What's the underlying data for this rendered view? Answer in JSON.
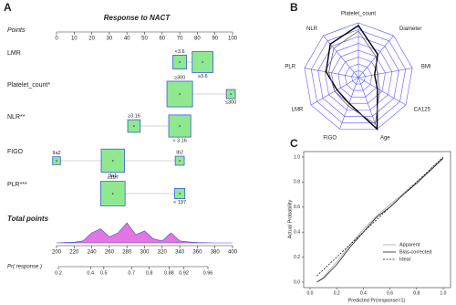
{
  "chart_data": [
    {
      "type": "nomogram",
      "panel": "A",
      "title": "Response to NACT",
      "points_label": "Points",
      "points_xlim": [
        0,
        100
      ],
      "points_ticks": [
        0,
        10,
        20,
        30,
        40,
        50,
        60,
        70,
        80,
        90,
        100
      ],
      "variables": [
        {
          "name": "LMR",
          "levels": [
            {
              "label": "<3.6",
              "points": 70,
              "proportion": 0.35
            },
            {
              "label": "≥3.6",
              "points": 83,
              "proportion": 0.65
            }
          ]
        },
        {
          "name": "Platelet_count*",
          "levels": [
            {
              "label": "≥300",
              "points": 70,
              "proportion": 0.85
            },
            {
              "label": "≤300",
              "points": 99,
              "proportion": 0.15
            }
          ]
        },
        {
          "name": "NLR**",
          "levels": [
            {
              "label": "≥3.16",
              "points": 44,
              "proportion": 0.3
            },
            {
              "label": "< 3.16",
              "points": 70,
              "proportion": 0.7
            }
          ]
        },
        {
          "name": "FIGO",
          "levels": [
            {
              "label": "IIa2",
              "points": 0,
              "proportion": 0.1
            },
            {
              "label": "IIa1",
              "points": 32,
              "proportion": 0.75
            },
            {
              "label": "Ib2",
              "points": 70,
              "proportion": 0.15
            }
          ]
        },
        {
          "name": "PLR***",
          "levels": [
            {
              "label": "≥197",
              "points": 32,
              "proportion": 0.8
            },
            {
              "label": "< 197",
              "points": 70,
              "proportion": 0.2
            }
          ]
        }
      ],
      "total_label": "Total points",
      "total_xlim": [
        200,
        400
      ],
      "total_ticks": [
        200,
        220,
        240,
        260,
        280,
        300,
        320,
        340,
        360,
        380,
        400
      ],
      "density": {
        "color": "#d63cd6",
        "ylim": [
          0,
          1
        ],
        "x": [
          200,
          210,
          220,
          230,
          240,
          250,
          260,
          270,
          280,
          290,
          300,
          310,
          320,
          330,
          340,
          350,
          360,
          370,
          380,
          390,
          400
        ],
        "y": [
          0,
          0.02,
          0.03,
          0.1,
          0.5,
          0.7,
          0.3,
          0.5,
          1.0,
          0.4,
          0.6,
          0.2,
          0.1,
          0.5,
          0.1,
          0.05,
          0.02,
          0.01,
          0,
          0,
          0
        ]
      },
      "prob_label": "Pr( response )",
      "prob_scale": "logit",
      "prob_xlim": [
        0.2,
        0.96
      ],
      "prob_ticks": [
        0.2,
        0.4,
        0.5,
        0.7,
        0.8,
        0.88,
        0.92,
        0.96
      ]
    },
    {
      "type": "radar",
      "panel": "B",
      "axes": [
        "Platelet_count",
        "Diameter",
        "BMI",
        "CA125",
        "Age",
        "FIGO",
        "LMR",
        "PLR",
        "NLR"
      ],
      "rlim": [
        0,
        1
      ],
      "grid_color": "#5a5aff",
      "series": [
        {
          "color": "#000000",
          "values": [
            0.95,
            0.55,
            0.3,
            0.4,
            1.0,
            0.5,
            0.45,
            0.6,
            0.8
          ]
        },
        {
          "color": "#666666",
          "values": [
            0.85,
            0.5,
            0.35,
            0.45,
            0.9,
            0.55,
            0.5,
            0.55,
            0.7
          ]
        }
      ]
    },
    {
      "type": "line",
      "panel": "C",
      "xlabel": "Predicted Pr(response=1)",
      "ylabel": "Actual Probability",
      "x": [
        0.05,
        0.1,
        0.2,
        0.3,
        0.4,
        0.5,
        0.6,
        0.7,
        0.8,
        0.9,
        1.0
      ],
      "series": [
        {
          "name": "Apparent",
          "color": "#999999",
          "dash": false,
          "values": [
            0.0,
            0.04,
            0.16,
            0.3,
            0.42,
            0.53,
            0.62,
            0.71,
            0.8,
            0.9,
            1.0
          ]
        },
        {
          "name": "Bias-corrected",
          "color": "#000000",
          "dash": false,
          "values": [
            0.0,
            0.03,
            0.14,
            0.28,
            0.4,
            0.52,
            0.6,
            0.7,
            0.79,
            0.89,
            0.99
          ]
        },
        {
          "name": "Ideal",
          "color": "#000000",
          "dash": true,
          "values": [
            0.05,
            0.1,
            0.2,
            0.3,
            0.4,
            0.5,
            0.6,
            0.7,
            0.8,
            0.9,
            1.0
          ]
        }
      ],
      "xlim": [
        0,
        1
      ],
      "ylim": [
        0,
        1
      ],
      "xticks": [
        {
          "value": 0,
          "label": "0.0"
        },
        0.2,
        0.4,
        0.6,
        0.8,
        {
          "value": 1,
          "label": "1.0"
        }
      ],
      "yticks": [
        {
          "value": 0,
          "label": "0.0"
        },
        0.2,
        0.4,
        0.6,
        0.8,
        {
          "value": 1,
          "label": "1.0"
        }
      ]
    }
  ]
}
